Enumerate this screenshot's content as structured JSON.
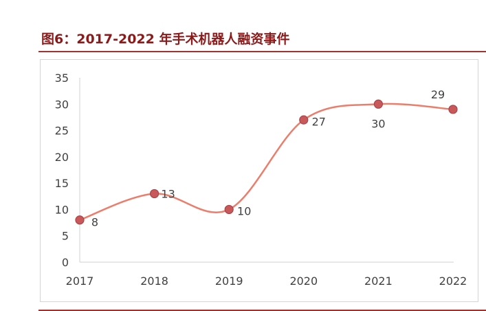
{
  "figure": {
    "title": "图6：2017-2022 年手术机器人融资事件"
  },
  "chart_data": {
    "type": "line",
    "title": "",
    "xlabel": "",
    "ylabel": "",
    "categories": [
      "2017",
      "2018",
      "2019",
      "2020",
      "2021",
      "2022"
    ],
    "series": [
      {
        "values": [
          8,
          13,
          10,
          27,
          30,
          29
        ]
      }
    ],
    "y_ticks": [
      "0",
      "5",
      "10",
      "15",
      "20",
      "25",
      "30",
      "35"
    ],
    "ylim": [
      0,
      35
    ],
    "data_labels": [
      "8",
      "13",
      "10",
      "27",
      "30",
      "29"
    ],
    "smooth": true,
    "grid": false,
    "legend": "none",
    "colors": {
      "line": "#ed7d6b",
      "marker_fill": "#c9585a",
      "marker_stroke": "#a94446",
      "axis": "#d0d0d0",
      "title": "#8b1a1a",
      "rule": "#a0322f"
    }
  }
}
